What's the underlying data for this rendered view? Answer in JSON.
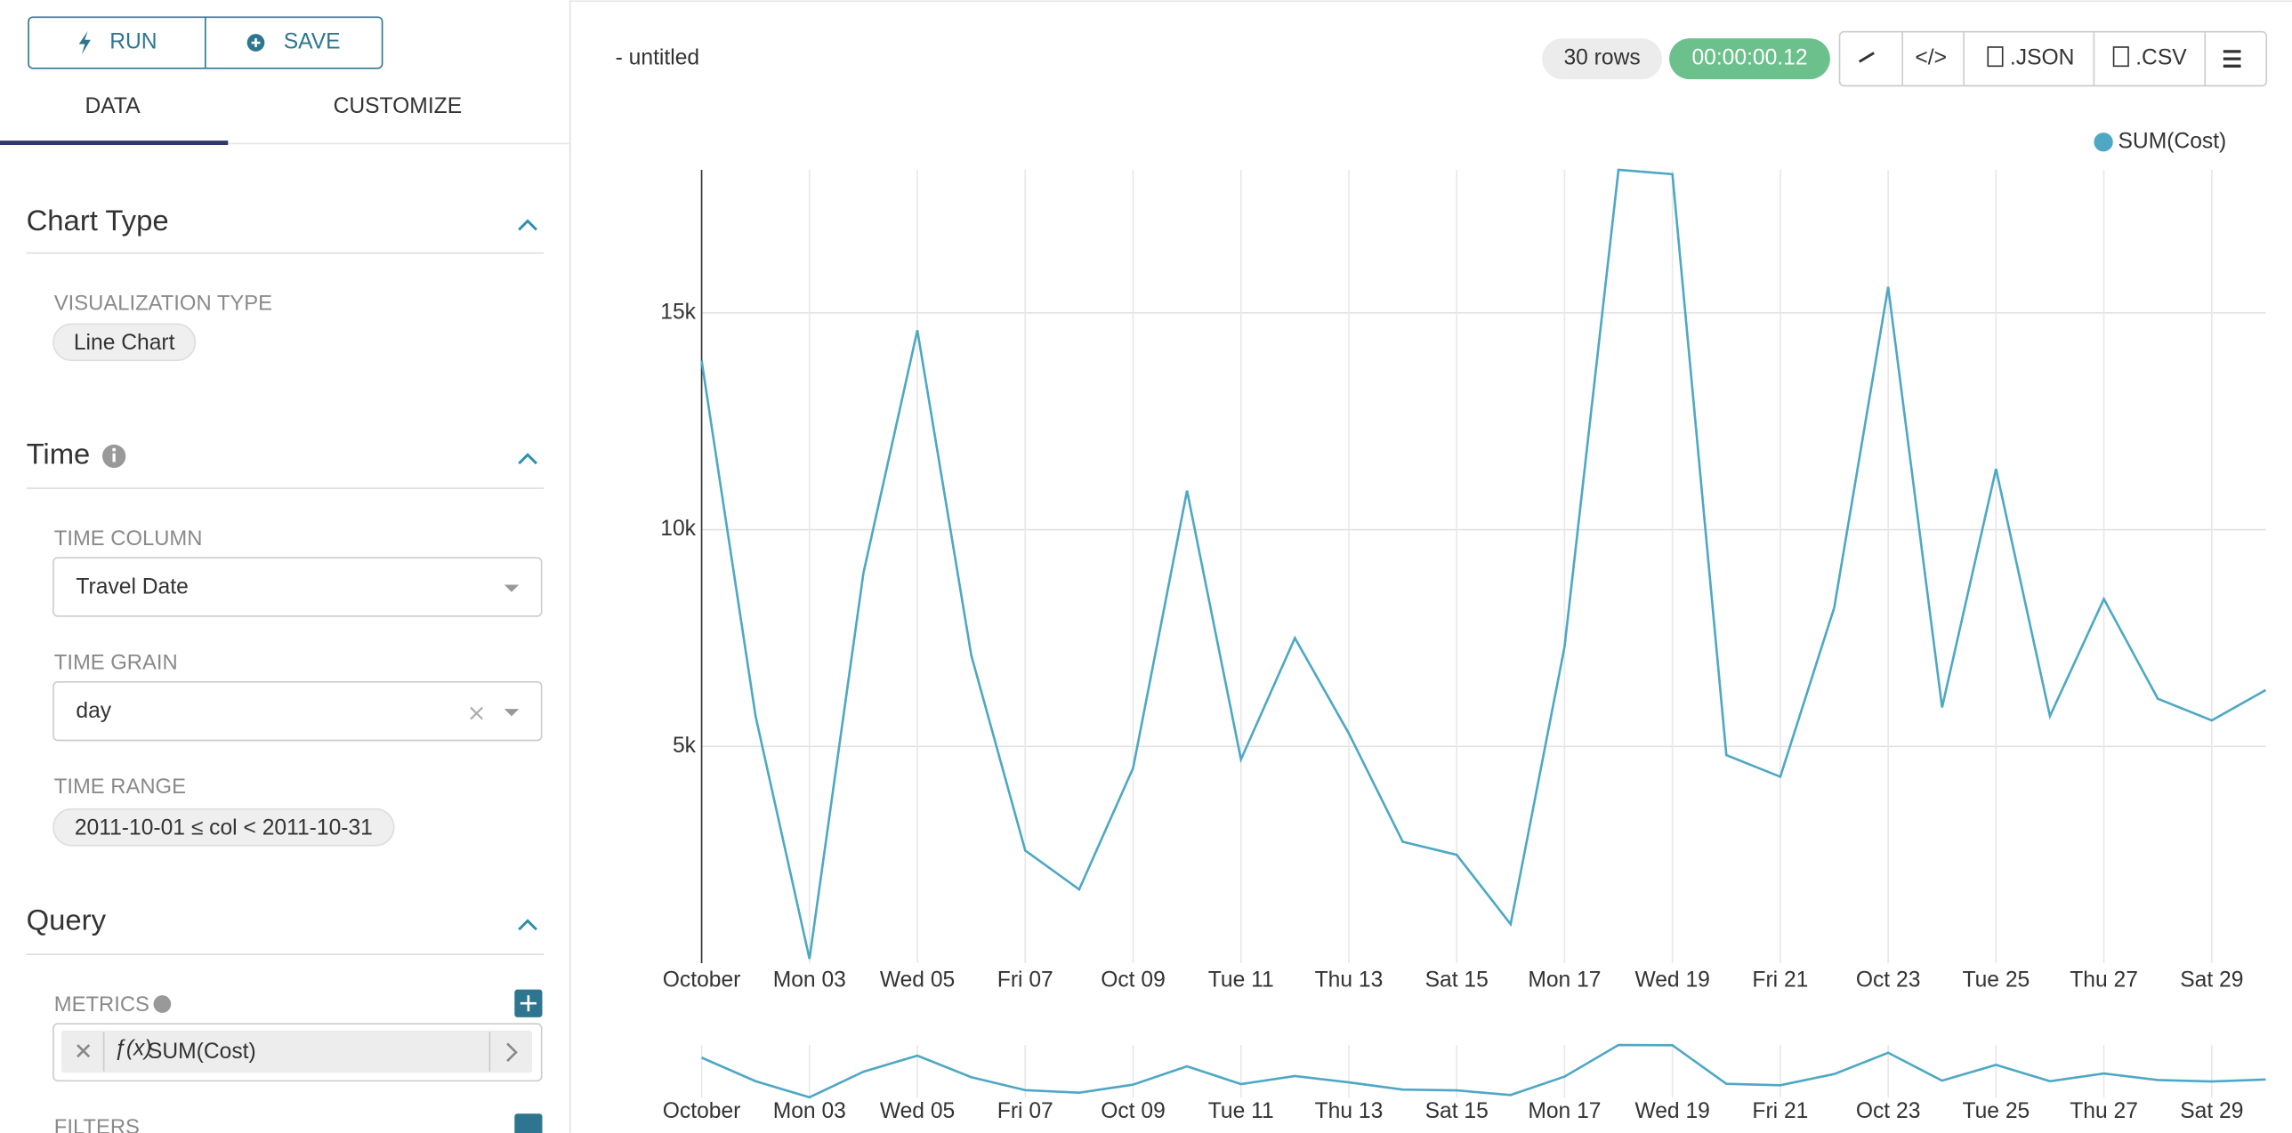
{
  "sidebar": {
    "run": "RUN",
    "save": "SAVE",
    "tabs": [
      "DATA",
      "CUSTOMIZE"
    ],
    "chart_type": {
      "title": "Chart Type",
      "label": "VISUALIZATION TYPE",
      "value": "Line Chart"
    },
    "time": {
      "title": "Time",
      "column_label": "TIME COLUMN",
      "column": "Travel Date",
      "grain_label": "TIME GRAIN",
      "grain": "day",
      "range_label": "TIME RANGE",
      "range": "2011-10-01 ≤ col < 2011-10-31"
    },
    "query": {
      "title": "Query",
      "metrics_label": "METRICS",
      "metric": "SUM(Cost)",
      "filters_label": "FILTERS"
    }
  },
  "header": {
    "title": "- untitled",
    "rows": "30 rows",
    "timer": "00:00:00.12",
    "json": ".JSON",
    "csv": ".CSV"
  },
  "chart": {
    "type": "line",
    "categories": [
      "October",
      null,
      "Mon 03",
      null,
      "Wed 05",
      null,
      "Fri 07",
      null,
      "Oct 09",
      null,
      "Tue 11",
      null,
      "Thu 13",
      null,
      "Sat 15",
      null,
      "Mon 17",
      null,
      "Wed 19",
      null,
      "Fri 21",
      null,
      "Oct 23",
      null,
      "Tue 25",
      null,
      "Thu 27",
      null,
      "Sat 29",
      null
    ],
    "series": [
      {
        "name": "SUM(Cost)",
        "color": "#4ea8c4",
        "values": [
          13900,
          5700,
          100,
          9000,
          14600,
          7100,
          2600,
          1700,
          4500,
          10900,
          4700,
          7500,
          5300,
          2800,
          2500,
          900,
          7300,
          18300,
          18200,
          4800,
          4300,
          8200,
          15600,
          5900,
          11400,
          5700,
          8400,
          6100,
          5600,
          6300
        ]
      }
    ],
    "ylim": [
      0,
      18300
    ],
    "yticks": [
      {
        "value": 5000,
        "label": "5k"
      },
      {
        "value": 10000,
        "label": "10k"
      },
      {
        "value": 15000,
        "label": "15k"
      }
    ],
    "grid": true
  }
}
